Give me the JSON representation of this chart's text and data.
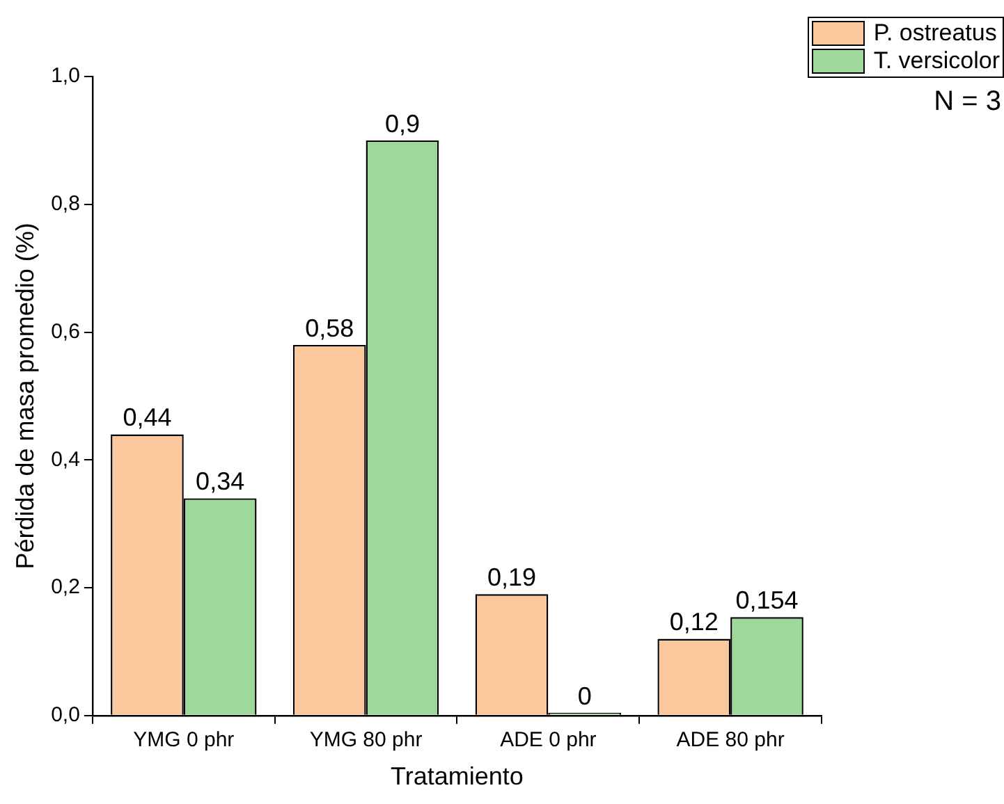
{
  "chart_data": {
    "type": "bar",
    "xlabel": "Tratamiento",
    "ylabel": "Pérdida de masa promedio (%)",
    "categories": [
      "YMG 0 phr",
      "YMG 80 phr",
      "ADE 0 phr",
      "ADE 80 phr"
    ],
    "series": [
      {
        "name": "P. ostreatus",
        "color": "#fbc89e",
        "values": [
          0.44,
          0.58,
          0.19,
          0.12
        ],
        "value_labels": [
          "0,44",
          "0,58",
          "0,19",
          "0,12"
        ]
      },
      {
        "name": "T. versicolor",
        "color": "#9fd89b",
        "values": [
          0.34,
          0.9,
          0,
          0.154
        ],
        "value_labels": [
          "0,34",
          "0,9",
          "0",
          "0,154"
        ]
      }
    ],
    "ylim": [
      0,
      1
    ],
    "yticks": [
      {
        "value": 0,
        "label": "0,0"
      },
      {
        "value": 0.2,
        "label": "0,2"
      },
      {
        "value": 0.4,
        "label": "0,4"
      },
      {
        "value": 0.6,
        "label": "0,6"
      },
      {
        "value": 0.8,
        "label": "0,8"
      },
      {
        "value": 1,
        "label": "1,0"
      }
    ],
    "grid": false,
    "legend": "top right",
    "annotations": [
      "N = 3"
    ]
  }
}
